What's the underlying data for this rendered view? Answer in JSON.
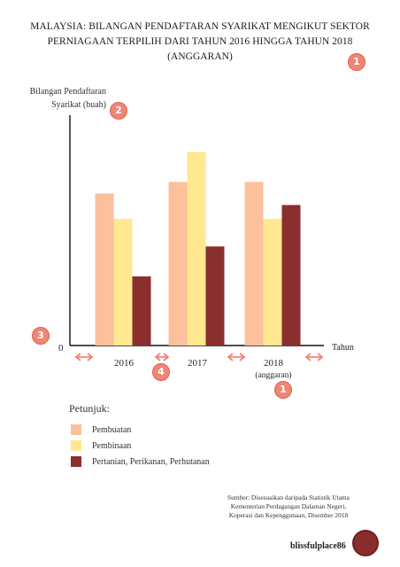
{
  "title": "MALAYSIA: BILANGAN PENDAFTARAN SYARIKAT MENGIKUT SEKTOR PERNIAGAAN TERPILIH DARI TAHUN 2016 HINGGA TAHUN 2018 (ANGGARAN)",
  "badges": [
    "1",
    "2",
    "3",
    "4",
    "1"
  ],
  "legend_title": "Petunjuk:",
  "source": "Sumber: Disesuaikan daripada Statistik Utama Kementerian Perdagangan Dalaman Negeri, Koperasi dan Kepenggunaan, Disember 2018",
  "brand": "blissfulplace86",
  "chart_data": {
    "type": "bar",
    "ylabel": "Bilangan Pendaftaran Syarikat (buah)",
    "xlabel": "Tahun",
    "origin_label": "0",
    "categories": [
      "2016",
      "2017",
      "2018"
    ],
    "category_sublabels": [
      "",
      "",
      "(anggaran)"
    ],
    "ylim": [
      0,
      100
    ],
    "grid": false,
    "legend_position": "bottom-left",
    "series": [
      {
        "name": "Pembuatan",
        "color": "#fcc09c",
        "values": [
          66,
          71,
          71
        ]
      },
      {
        "name": "Pembinaan",
        "color": "#ffe88f",
        "values": [
          55,
          84,
          55
        ]
      },
      {
        "name": "Pertanian, Perikanan, Perhutanan",
        "color": "#8b2e2e",
        "values": [
          30,
          43,
          61
        ]
      }
    ],
    "arrow_color": "#ee8676"
  }
}
